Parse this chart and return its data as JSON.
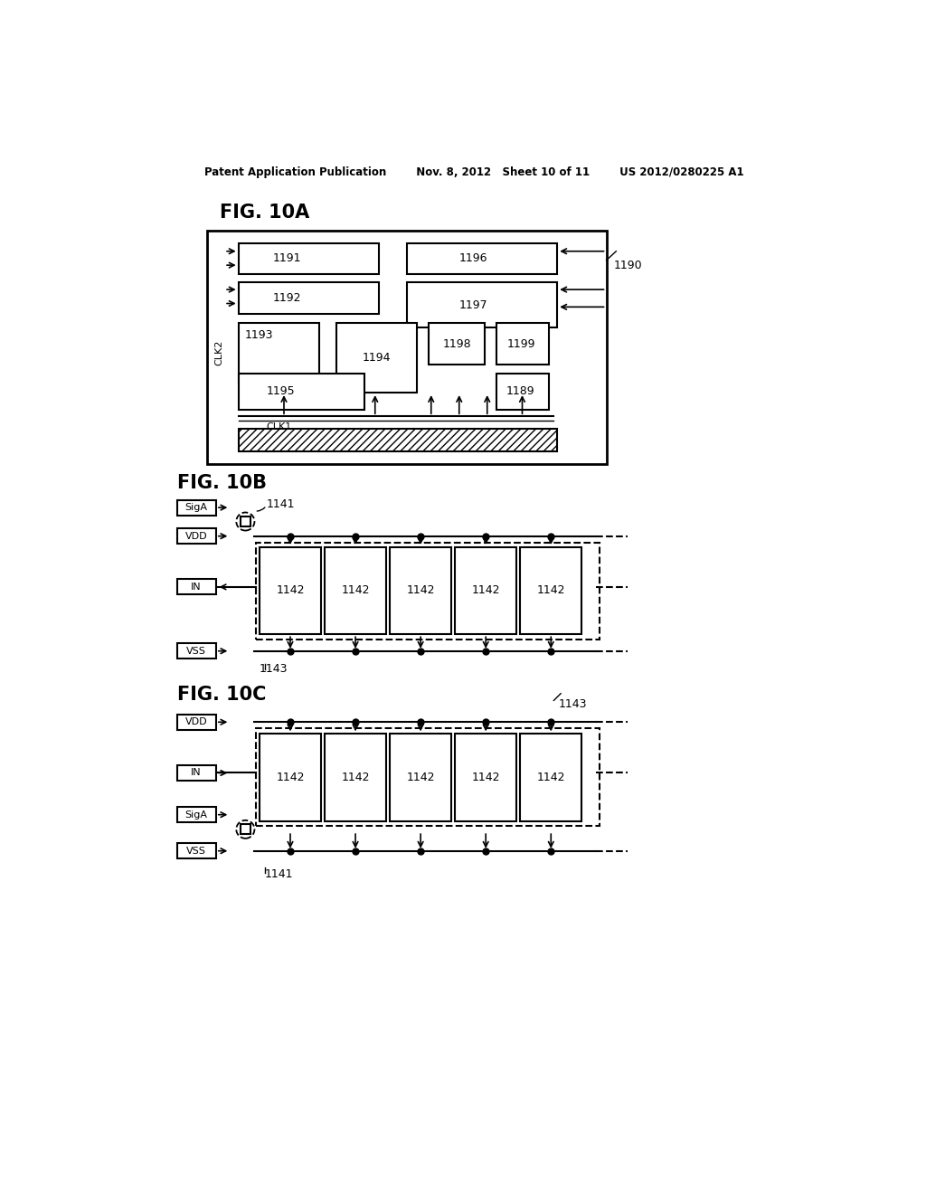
{
  "bg_color": "#ffffff",
  "text_color": "#000000",
  "header_text": "Patent Application Publication        Nov. 8, 2012   Sheet 10 of 11        US 2012/0280225 A1",
  "fig10a_label": "FIG. 10A",
  "fig10b_label": "FIG. 10B",
  "fig10c_label": "FIG. 10C"
}
